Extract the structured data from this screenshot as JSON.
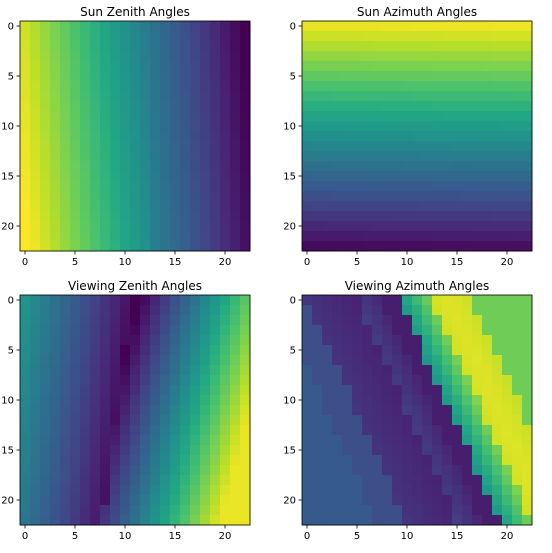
{
  "chart_data": [
    {
      "type": "heatmap",
      "title": "Sun Zenith Angles",
      "colormap": "viridis",
      "rows": 23,
      "cols": 23,
      "xlim": [
        -0.5,
        22.5
      ],
      "ylim": [
        22.5,
        -0.5
      ],
      "x_ticks": [
        0,
        5,
        10,
        15,
        20
      ],
      "y_ticks": [
        0,
        5,
        10,
        15,
        20
      ],
      "pattern": "normalized value decreases left to right (yellow to purple) with slight tilt",
      "values_normalized": {
        "left_edge": 0.95,
        "center": 0.5,
        "right_edge": 0.02
      }
    },
    {
      "type": "heatmap",
      "title": "Sun Azimuth Angles",
      "colormap": "viridis",
      "rows": 23,
      "cols": 23,
      "xlim": [
        -0.5,
        22.5
      ],
      "ylim": [
        22.5,
        -0.5
      ],
      "x_ticks": [
        0,
        5,
        10,
        15,
        20
      ],
      "y_ticks": [
        0,
        5,
        10,
        15,
        20
      ],
      "pattern": "normalized value decreases top to bottom (yellow to dark purple) in horizontal bands",
      "values_normalized": {
        "top_edge": 0.97,
        "center": 0.45,
        "bottom_edge": 0.0
      }
    },
    {
      "type": "heatmap",
      "title": "Viewing Zenith Angles",
      "colormap": "viridis",
      "rows": 23,
      "cols": 23,
      "xlim": [
        -0.5,
        22.5
      ],
      "ylim": [
        22.5,
        -0.5
      ],
      "x_ticks": [
        0,
        5,
        10,
        15,
        20
      ],
      "y_ticks": [
        0,
        5,
        10,
        15,
        20
      ],
      "pattern": "V-shaped: high at left and right edges, minimum diagonal band near column 10 shifting left toward bottom",
      "values_normalized": {
        "left_edge": 0.55,
        "minimum": 0.0,
        "right_edge_bottom": 0.95
      }
    },
    {
      "type": "heatmap",
      "title": "Viewing Azimuth Angles",
      "colormap": "viridis",
      "rows": 23,
      "cols": 23,
      "xlim": [
        -0.5,
        22.5
      ],
      "ylim": [
        22.5,
        -0.5
      ],
      "x_ticks": [
        0,
        5,
        10,
        15,
        20
      ],
      "y_ticks": [
        0,
        5,
        10,
        15,
        20
      ],
      "pattern": "diagonal bands with sharp discontinuity: blue/purple left region, green/yellow right region, bands tilted",
      "values_normalized": {
        "left_region": 0.25,
        "right_region": 0.8,
        "peak": 0.97
      }
    }
  ]
}
